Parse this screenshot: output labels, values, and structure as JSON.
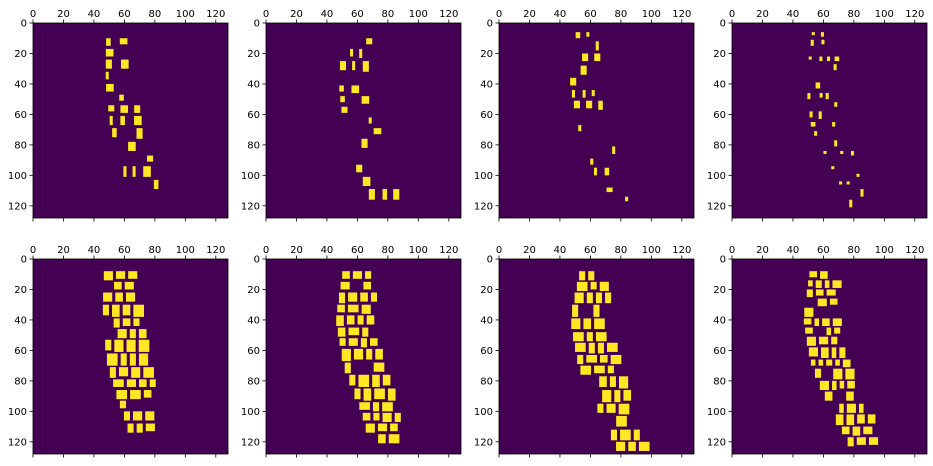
{
  "colors": {
    "background": "#440154",
    "foreground": "#fde725",
    "axis": "#000000",
    "figure": "#ffffff"
  },
  "chart_data": [
    {
      "type": "heatmap",
      "title": "",
      "xlabel": "",
      "ylabel": "",
      "xlim": [
        0,
        128
      ],
      "ylim": [
        128,
        0
      ],
      "x_ticks": [
        "0",
        "20",
        "40",
        "60",
        "80",
        "100",
        "120"
      ],
      "y_ticks": [
        "0",
        "20",
        "40",
        "60",
        "80",
        "100",
        "120"
      ],
      "grid": false,
      "colormap": [
        "#440154",
        "#fde725"
      ],
      "mask": {
        "style": "sparse",
        "center": [
          [
            10,
            56
          ],
          [
            40,
            58
          ],
          [
            70,
            62
          ],
          [
            95,
            68
          ],
          [
            110,
            72
          ]
        ],
        "width": 22,
        "spot": 5,
        "fill": 0.55,
        "seed": 11
      }
    },
    {
      "type": "heatmap",
      "title": "",
      "xlabel": "",
      "ylabel": "",
      "xlim": [
        0,
        128
      ],
      "ylim": [
        128,
        0
      ],
      "x_ticks": [
        "0",
        "20",
        "40",
        "60",
        "80",
        "100",
        "120"
      ],
      "y_ticks": [
        "0",
        "20",
        "40",
        "60",
        "80",
        "100",
        "120"
      ],
      "grid": false,
      "colormap": [
        "#440154",
        "#fde725"
      ],
      "mask": {
        "style": "sparse",
        "center": [
          [
            10,
            58
          ],
          [
            40,
            58
          ],
          [
            70,
            62
          ],
          [
            95,
            68
          ],
          [
            112,
            76
          ]
        ],
        "width": 22,
        "spot": 5,
        "fill": 0.5,
        "seed": 23
      }
    },
    {
      "type": "heatmap",
      "title": "",
      "xlabel": "",
      "ylabel": "",
      "xlim": [
        0,
        128
      ],
      "ylim": [
        128,
        0
      ],
      "x_ticks": [
        "0",
        "20",
        "40",
        "60",
        "80",
        "100",
        "120"
      ],
      "y_ticks": [
        "0",
        "20",
        "40",
        "60",
        "80",
        "100",
        "120"
      ],
      "grid": false,
      "colormap": [
        "#440154",
        "#fde725"
      ],
      "mask": {
        "style": "sparse",
        "center": [
          [
            6,
            58
          ],
          [
            40,
            56
          ],
          [
            70,
            62
          ],
          [
            100,
            72
          ],
          [
            122,
            86
          ]
        ],
        "width": 20,
        "spot": 4,
        "fill": 0.42,
        "seed": 37
      }
    },
    {
      "type": "heatmap",
      "title": "",
      "xlabel": "",
      "ylabel": "",
      "xlim": [
        0,
        128
      ],
      "ylim": [
        128,
        0
      ],
      "x_ticks": [
        "0",
        "20",
        "40",
        "60",
        "80",
        "100",
        "120"
      ],
      "y_ticks": [
        "0",
        "20",
        "40",
        "60",
        "80",
        "100",
        "120"
      ],
      "grid": false,
      "colormap": [
        "#440154",
        "#fde725"
      ],
      "mask": {
        "style": "sparse",
        "center": [
          [
            6,
            60
          ],
          [
            40,
            58
          ],
          [
            70,
            62
          ],
          [
            100,
            76
          ],
          [
            122,
            86
          ]
        ],
        "width": 20,
        "spot": 3,
        "fill": 0.42,
        "seed": 53
      }
    },
    {
      "type": "heatmap",
      "title": "",
      "xlabel": "",
      "ylabel": "",
      "xlim": [
        0,
        128
      ],
      "ylim": [
        128,
        0
      ],
      "x_ticks": [
        "0",
        "20",
        "40",
        "60",
        "80",
        "100",
        "120"
      ],
      "y_ticks": [
        "0",
        "20",
        "40",
        "60",
        "80",
        "100",
        "120"
      ],
      "grid": false,
      "colormap": [
        "#440154",
        "#fde725"
      ],
      "mask": {
        "style": "dense",
        "center": [
          [
            8,
            56
          ],
          [
            40,
            58
          ],
          [
            70,
            62
          ],
          [
            95,
            68
          ],
          [
            110,
            72
          ]
        ],
        "width": 26,
        "spot": 6,
        "fill": 0.92,
        "seed": 71
      }
    },
    {
      "type": "heatmap",
      "title": "",
      "xlabel": "",
      "ylabel": "",
      "xlim": [
        0,
        128
      ],
      "ylim": [
        128,
        0
      ],
      "x_ticks": [
        "0",
        "20",
        "40",
        "60",
        "80",
        "100",
        "120"
      ],
      "y_ticks": [
        "0",
        "20",
        "40",
        "60",
        "80",
        "100",
        "120"
      ],
      "grid": false,
      "colormap": [
        "#440154",
        "#fde725"
      ],
      "mask": {
        "style": "dense",
        "center": [
          [
            8,
            60
          ],
          [
            40,
            58
          ],
          [
            70,
            64
          ],
          [
            100,
            74
          ],
          [
            120,
            78
          ]
        ],
        "width": 26,
        "spot": 6,
        "fill": 0.9,
        "seed": 89
      }
    },
    {
      "type": "heatmap",
      "title": "",
      "xlabel": "",
      "ylabel": "",
      "xlim": [
        0,
        128
      ],
      "ylim": [
        128,
        0
      ],
      "x_ticks": [
        "0",
        "20",
        "40",
        "60",
        "80",
        "100",
        "120"
      ],
      "y_ticks": [
        "0",
        "20",
        "40",
        "60",
        "80",
        "100",
        "120"
      ],
      "grid": false,
      "colormap": [
        "#440154",
        "#fde725"
      ],
      "mask": {
        "style": "dense",
        "center": [
          [
            8,
            62
          ],
          [
            40,
            58
          ],
          [
            70,
            64
          ],
          [
            100,
            76
          ],
          [
            122,
            86
          ]
        ],
        "width": 24,
        "spot": 6,
        "fill": 0.85,
        "seed": 97
      }
    },
    {
      "type": "heatmap",
      "title": "",
      "xlabel": "",
      "ylabel": "",
      "xlim": [
        0,
        128
      ],
      "ylim": [
        128,
        0
      ],
      "x_ticks": [
        "0",
        "20",
        "40",
        "60",
        "80",
        "100",
        "120"
      ],
      "y_ticks": [
        "0",
        "20",
        "40",
        "60",
        "80",
        "100",
        "120"
      ],
      "grid": false,
      "colormap": [
        "#440154",
        "#fde725"
      ],
      "mask": {
        "style": "dense",
        "center": [
          [
            8,
            60
          ],
          [
            40,
            58
          ],
          [
            70,
            64
          ],
          [
            100,
            76
          ],
          [
            122,
            86
          ]
        ],
        "width": 24,
        "spot": 5,
        "fill": 0.82,
        "seed": 113
      }
    }
  ]
}
